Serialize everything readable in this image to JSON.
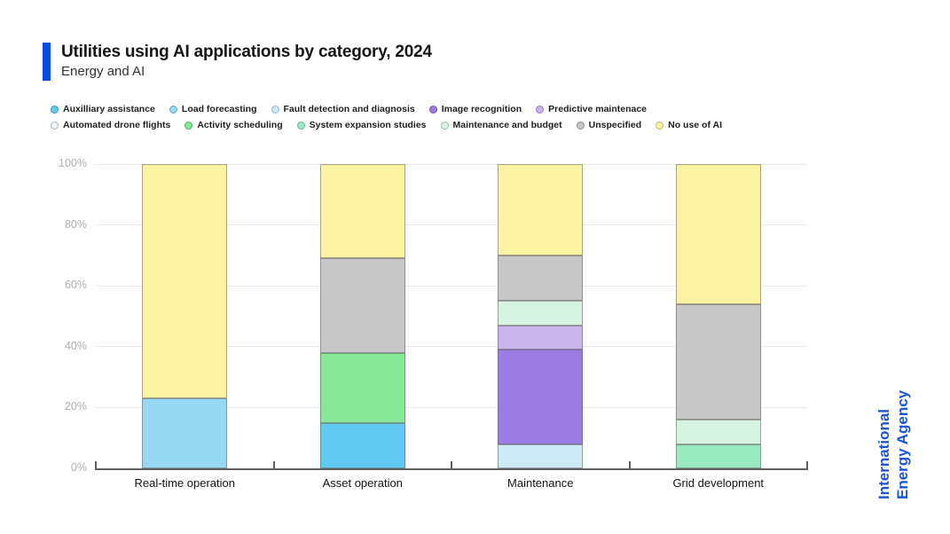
{
  "header": {
    "title": "Utilities using AI applications by category, 2024",
    "subtitle": "Energy and AI"
  },
  "branding": {
    "line1": "International",
    "line2": "Energy Agency",
    "color": "#1a56d6",
    "accent_color": "#0a47ed"
  },
  "chart_data": {
    "type": "bar",
    "subtype": "stacked-100-percent",
    "title": "Utilities using AI applications by category, 2024",
    "subtitle": "Energy and AI",
    "unit": "%",
    "categories": [
      "Real-time operation",
      "Asset operation",
      "Maintenance",
      "Grid development"
    ],
    "series": [
      {
        "name": "Auxilliary assistance",
        "color": "#62c9f3",
        "ring": "#3e96bb",
        "values": [
          0,
          15,
          0,
          0
        ]
      },
      {
        "name": "Load forecasting",
        "color": "#97d9f2",
        "ring": "#68a7bf",
        "values": [
          23,
          0,
          0,
          0
        ]
      },
      {
        "name": "Fault detection and diagnosis",
        "color": "#cdeaf7",
        "ring": "#92b8c9",
        "values": [
          0,
          0,
          8,
          0
        ]
      },
      {
        "name": "Image recognition",
        "color": "#9b7ce3",
        "ring": "#6f55ae",
        "values": [
          0,
          0,
          31,
          0
        ]
      },
      {
        "name": "Predictive maintenace",
        "color": "#c9b4ec",
        "ring": "#967fbd",
        "values": [
          0,
          0,
          8,
          0
        ]
      },
      {
        "name": "Automated drone flights",
        "color": "#eff4fb",
        "ring": "#a9b6c9",
        "values": [
          0,
          0,
          0,
          0
        ]
      },
      {
        "name": "Activity scheduling",
        "color": "#86e896",
        "ring": "#55b267",
        "values": [
          0,
          23,
          0,
          0
        ]
      },
      {
        "name": "System expansion studies",
        "color": "#99e9c1",
        "ring": "#63b78f",
        "values": [
          0,
          0,
          0,
          8
        ]
      },
      {
        "name": "Maintenance and budget",
        "color": "#d7f4e3",
        "ring": "#98c2aa",
        "values": [
          0,
          0,
          8,
          8
        ]
      },
      {
        "name": "Unspecified",
        "color": "#c7c7c7",
        "ring": "#8f8f8f",
        "values": [
          0,
          31,
          15,
          38
        ]
      },
      {
        "name": "No use of AI",
        "color": "#fbf3a2",
        "ring": "#bfb66a",
        "values": [
          77,
          31,
          30,
          46
        ]
      }
    ],
    "y_ticks": [
      "0%",
      "20%",
      "40%",
      "60%",
      "80%",
      "100%"
    ],
    "ylim": [
      0,
      100
    ],
    "grid": true,
    "legend_position": "top"
  }
}
